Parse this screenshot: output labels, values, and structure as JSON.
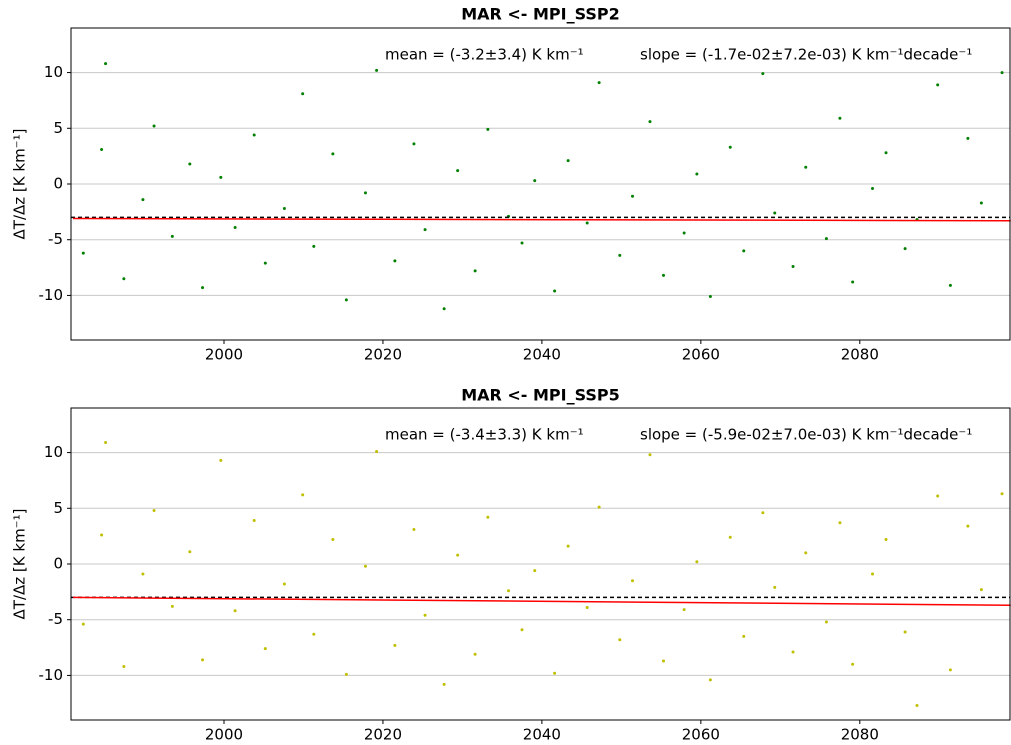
{
  "chart_data": [
    {
      "type": "scatter",
      "title": "MAR <- MPI_SSP2",
      "mean_text": "mean = (-3.2±3.4) K km⁻¹",
      "slope_text": "slope = (-1.7e-02±7.2e-03) K km⁻¹decade⁻¹",
      "ylabel": "ΔT/Δz [K km⁻¹]",
      "color": "#008000",
      "x": [
        1982.3,
        1984.6,
        1985.1,
        1987.4,
        1989.8,
        1991.2,
        1993.5,
        1995.7,
        1997.3,
        1999.6,
        2001.4,
        2003.8,
        2005.2,
        2007.6,
        2009.9,
        2011.3,
        2013.7,
        2015.4,
        2017.8,
        2019.2,
        2021.5,
        2023.9,
        2025.3,
        2027.7,
        2029.4,
        2031.6,
        2033.2,
        2035.8,
        2037.5,
        2039.1,
        2041.6,
        2043.3,
        2045.7,
        2047.2,
        2049.8,
        2051.4,
        2053.6,
        2055.3,
        2057.9,
        2059.5,
        2061.2,
        2063.7,
        2065.4,
        2067.8,
        2069.3,
        2071.6,
        2073.2,
        2075.8,
        2077.5,
        2079.1,
        2081.6,
        2083.3,
        2085.7,
        2087.2,
        2089.8,
        2091.4,
        2093.6,
        2095.3,
        2097.9
      ],
      "values": [
        -6.2,
        3.1,
        10.8,
        -8.5,
        -1.4,
        5.2,
        -4.7,
        1.8,
        -9.3,
        0.6,
        -3.9,
        4.4,
        -7.1,
        -2.2,
        8.1,
        -5.6,
        2.7,
        -10.4,
        -0.8,
        10.2,
        -6.9,
        3.6,
        -4.1,
        -11.2,
        1.2,
        -7.8,
        4.9,
        -2.9,
        -5.3,
        0.3,
        -9.6,
        2.1,
        -3.5,
        9.1,
        -6.4,
        -1.1,
        5.6,
        -8.2,
        -4.4,
        0.9,
        -10.1,
        3.3,
        -6.0,
        9.9,
        -2.6,
        -7.4,
        1.5,
        -4.9,
        5.9,
        -8.8,
        -0.4,
        2.8,
        -5.8,
        -3.2,
        8.9,
        -9.1,
        4.1,
        -1.7,
        10.0
      ],
      "trend": {
        "x": [
          1981,
          2099
        ],
        "values": [
          -3.1,
          -3.3
        ],
        "color": "#ff0000"
      },
      "reference": {
        "value": -3.0,
        "color": "#000000"
      },
      "xlim": [
        1980.75,
        2098.9
      ],
      "ylim": [
        -14,
        14
      ],
      "xticks": [
        2000,
        2020,
        2040,
        2060,
        2080
      ],
      "yticks": [
        -10,
        -5,
        0,
        5,
        10
      ],
      "grid": true
    },
    {
      "type": "scatter",
      "title": "MAR <- MPI_SSP5",
      "mean_text": "mean = (-3.4±3.3) K km⁻¹",
      "slope_text": "slope = (-5.9e-02±7.0e-03) K km⁻¹decade⁻¹",
      "ylabel": "ΔT/Δz [K km⁻¹]",
      "color": "#bfbf00",
      "x": [
        1982.3,
        1984.6,
        1985.1,
        1987.4,
        1989.8,
        1991.2,
        1993.5,
        1995.7,
        1997.3,
        1999.6,
        2001.4,
        2003.8,
        2005.2,
        2007.6,
        2009.9,
        2011.3,
        2013.7,
        2015.4,
        2017.8,
        2019.2,
        2021.5,
        2023.9,
        2025.3,
        2027.7,
        2029.4,
        2031.6,
        2033.2,
        2035.8,
        2037.5,
        2039.1,
        2041.6,
        2043.3,
        2045.7,
        2047.2,
        2049.8,
        2051.4,
        2053.6,
        2055.3,
        2057.9,
        2059.5,
        2061.2,
        2063.7,
        2065.4,
        2067.8,
        2069.3,
        2071.6,
        2073.2,
        2075.8,
        2077.5,
        2079.1,
        2081.6,
        2083.3,
        2085.7,
        2087.2,
        2089.8,
        2091.4,
        2093.6,
        2095.3,
        2097.9
      ],
      "values": [
        -5.4,
        2.6,
        10.9,
        -9.2,
        -0.9,
        4.8,
        -3.8,
        1.1,
        -8.6,
        9.3,
        -4.2,
        3.9,
        -7.6,
        -1.8,
        6.2,
        -6.3,
        2.2,
        -9.9,
        -0.2,
        10.1,
        -7.3,
        3.1,
        -4.6,
        -10.8,
        0.8,
        -8.1,
        4.2,
        -2.4,
        -5.9,
        -0.6,
        -9.8,
        1.6,
        -3.9,
        5.1,
        -6.8,
        -1.5,
        9.8,
        -8.7,
        -4.1,
        0.2,
        -10.4,
        2.4,
        -6.5,
        4.6,
        -2.1,
        -7.9,
        1.0,
        -5.2,
        3.7,
        -9.0,
        -0.9,
        2.2,
        -6.1,
        -12.7,
        6.1,
        -9.5,
        3.4,
        -2.3,
        6.3
      ],
      "trend": {
        "x": [
          1981,
          2099
        ],
        "values": [
          -3.0,
          -3.7
        ],
        "color": "#ff0000"
      },
      "reference": {
        "value": -3.0,
        "color": "#000000"
      },
      "xlim": [
        1980.75,
        2098.9
      ],
      "ylim": [
        -14,
        14
      ],
      "xticks": [
        2000,
        2020,
        2040,
        2060,
        2080
      ],
      "yticks": [
        -10,
        -5,
        0,
        5,
        10
      ],
      "grid": true
    }
  ]
}
